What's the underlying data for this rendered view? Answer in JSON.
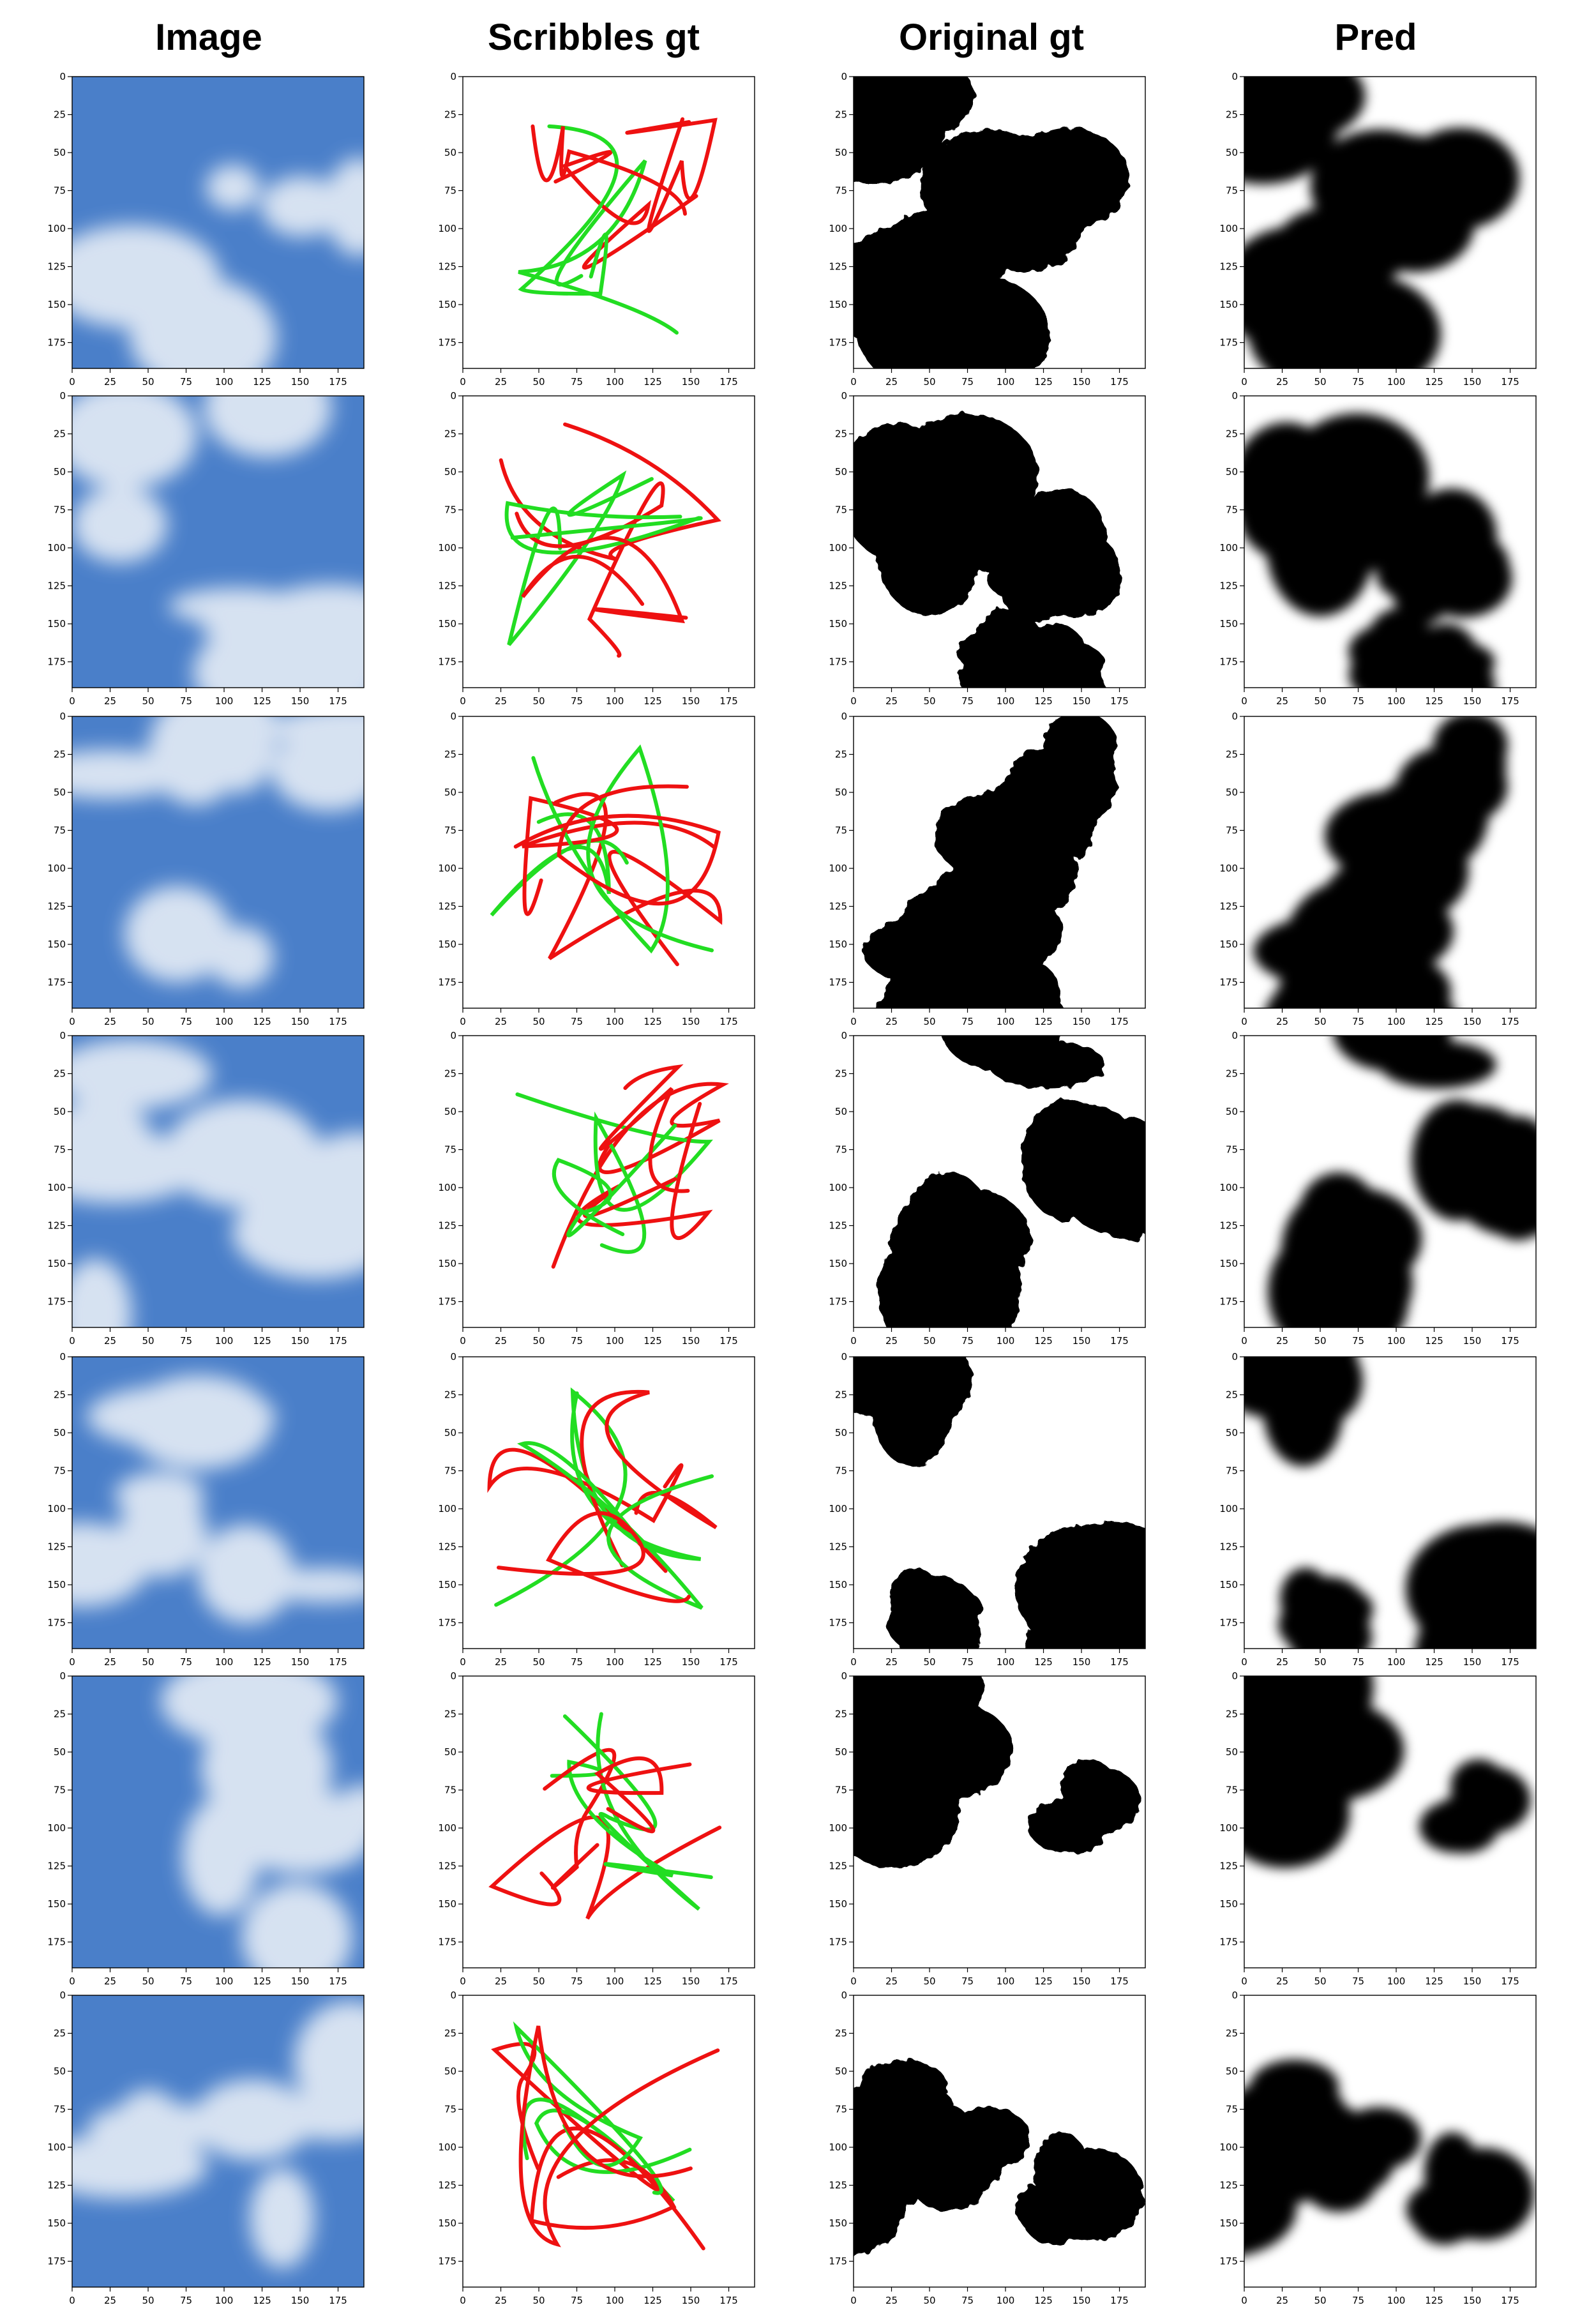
{
  "figure": {
    "columns": [
      "Image",
      "Scribbles gt",
      "Original gt",
      "Pred"
    ],
    "rows": 7
  },
  "axes": {
    "x_ticks": [
      0,
      25,
      50,
      75,
      100,
      125,
      150,
      175
    ],
    "y_ticks": [
      0,
      25,
      50,
      75,
      100,
      125,
      150,
      175
    ],
    "range": [
      0,
      192
    ]
  },
  "colors": {
    "sky_blue": "#4a7fc9",
    "cloud": "#e6edf6",
    "scribble_red": "#ee1111",
    "scribble_green": "#22dd22",
    "mask_black": "#000000",
    "mask_white": "#ffffff"
  }
}
